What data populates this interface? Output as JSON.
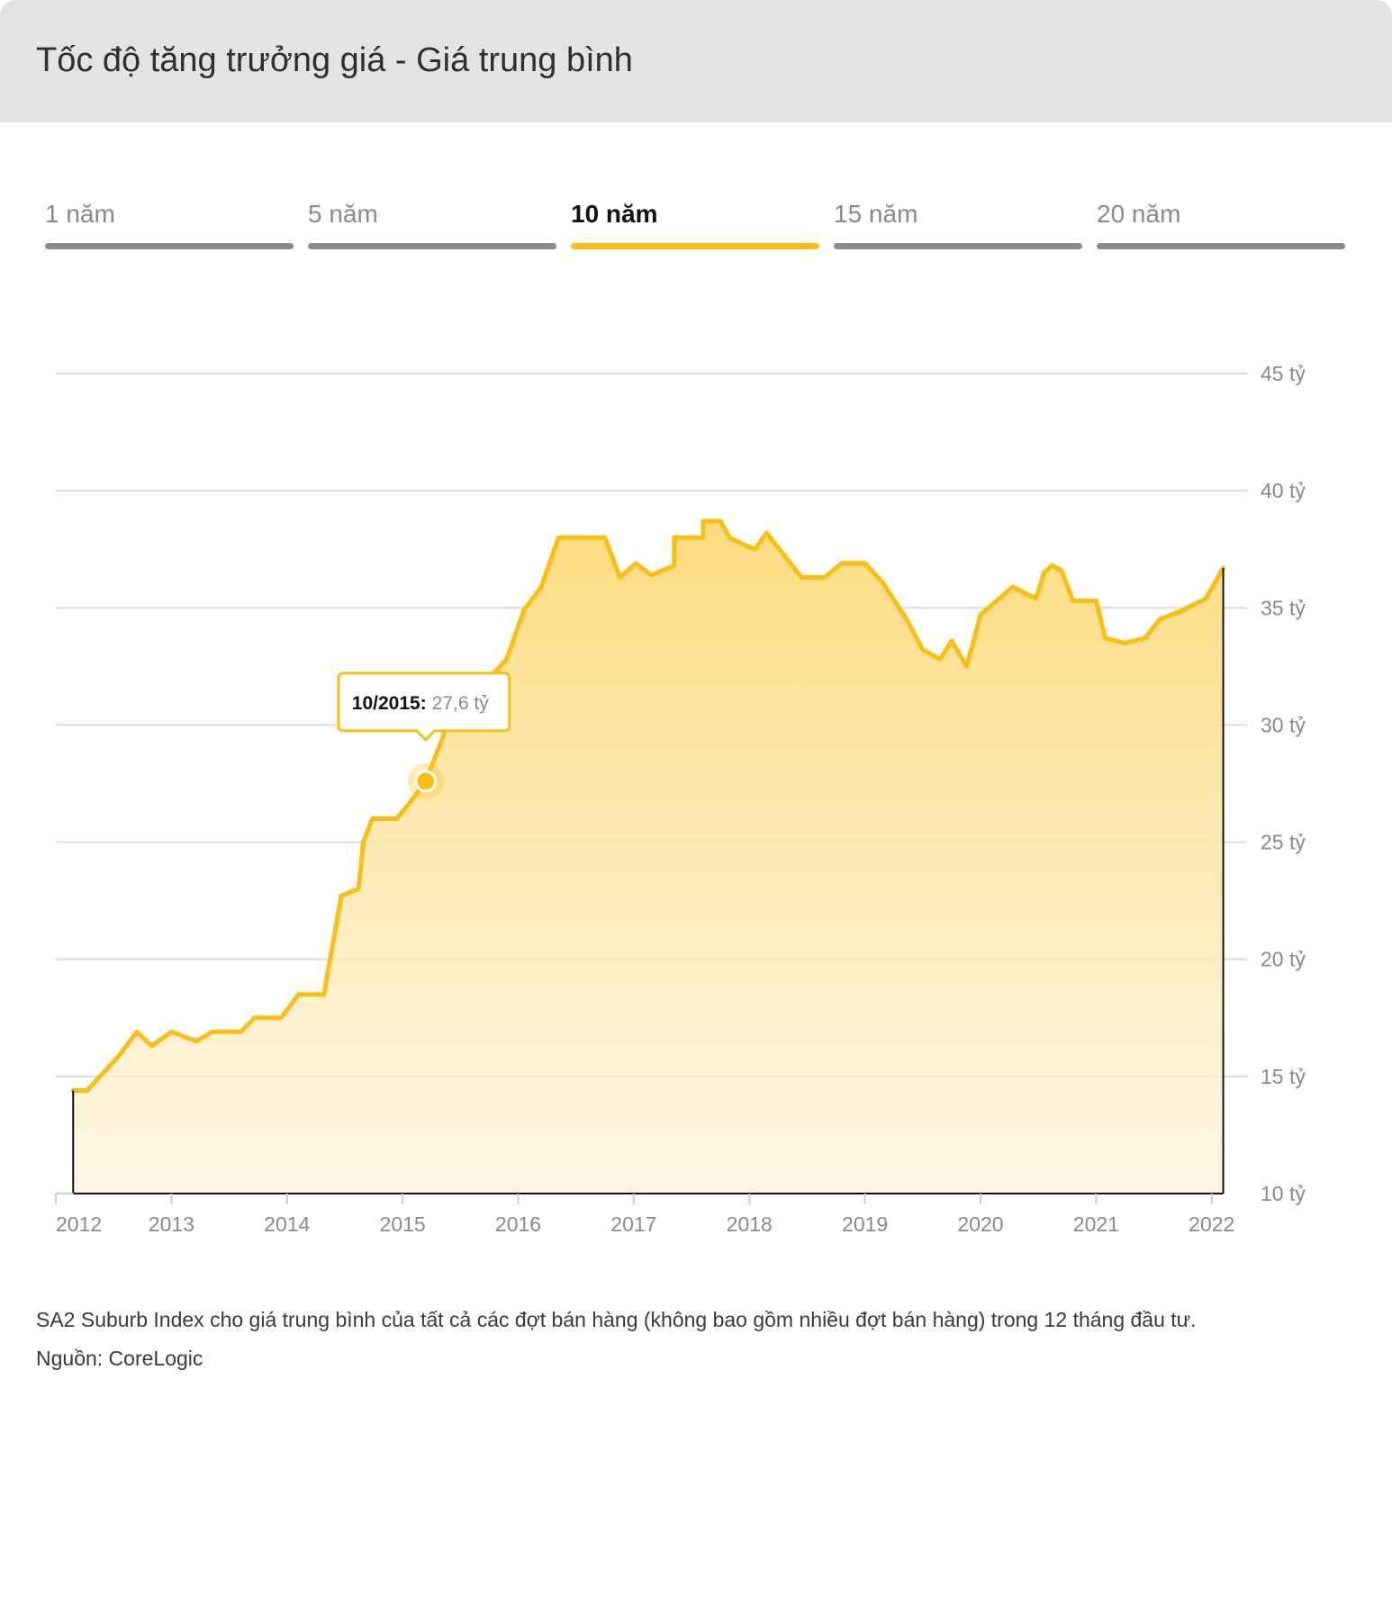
{
  "header": {
    "title": "Tốc độ tăng trưởng giá - Giá trung bình"
  },
  "tabs": [
    {
      "label": "1 năm",
      "active": false
    },
    {
      "label": "5 năm",
      "active": false
    },
    {
      "label": "10 năm",
      "active": true
    },
    {
      "label": "15 năm",
      "active": false
    },
    {
      "label": "20 năm",
      "active": false
    }
  ],
  "colors": {
    "accent": "#fbbf13",
    "inactive_tab": "#8c8c8c",
    "grid": "#dddddd",
    "axis_text": "#8a8a8a"
  },
  "chart_data": {
    "type": "area",
    "title": "",
    "xlabel": "",
    "ylabel": "",
    "ylim": [
      10,
      45
    ],
    "yticks": [
      10,
      15,
      20,
      25,
      30,
      35,
      40,
      45
    ],
    "ytick_labels": [
      "10 tỷ",
      "15 tỷ",
      "20 tỷ",
      "25 tỷ",
      "30 tỷ",
      "35 tỷ",
      "40 tỷ",
      "45 tỷ"
    ],
    "xlim": [
      2012.0,
      2022.15
    ],
    "xticks": [
      2012,
      2013,
      2014,
      2015,
      2016,
      2017,
      2018,
      2019,
      2020,
      2021,
      2022
    ],
    "xtick_labels": [
      "2012",
      "2013",
      "2014",
      "2015",
      "2016",
      "2017",
      "2018",
      "2019",
      "2020",
      "2021",
      "2022"
    ],
    "grid": true,
    "series": [
      {
        "x": [
          2012.15,
          2012.27,
          2012.42,
          2012.55,
          2012.7,
          2012.83,
          2013.0,
          2013.22,
          2013.35,
          2013.6,
          2013.72,
          2013.95,
          2014.1,
          2014.25,
          2014.32,
          2014.47,
          2014.62,
          2014.66,
          2014.74,
          2014.95,
          2015.05,
          2015.2,
          2015.35,
          2015.45,
          2015.55,
          2015.62,
          2015.75,
          2015.9,
          2016.05,
          2016.2,
          2016.35,
          2016.5,
          2016.65,
          2016.75,
          2016.88,
          2017.02,
          2017.15,
          2017.35,
          2017.35,
          2017.6,
          2017.6,
          2017.75,
          2017.83,
          2017.95,
          2018.05,
          2018.15,
          2018.45,
          2018.65,
          2018.8,
          2019.0,
          2019.15,
          2019.35,
          2019.5,
          2019.65,
          2019.75,
          2019.88,
          2020.0,
          2020.28,
          2020.48,
          2020.55,
          2020.62,
          2020.7,
          2020.8,
          2021.0,
          2021.08,
          2021.25,
          2021.42,
          2021.55,
          2021.75,
          2021.95,
          2022.1
        ],
        "y": [
          14.4,
          14.4,
          15.2,
          15.9,
          16.9,
          16.3,
          16.9,
          16.5,
          16.9,
          16.9,
          17.5,
          17.5,
          18.5,
          18.5,
          18.5,
          22.7,
          23.0,
          25.0,
          26.0,
          26.0,
          26.6,
          27.6,
          29.5,
          31.4,
          31.3,
          31.9,
          32.0,
          32.8,
          34.9,
          35.9,
          38.0,
          38.0,
          38.0,
          38.0,
          36.3,
          36.9,
          36.4,
          36.8,
          38.0,
          38.0,
          38.7,
          38.7,
          38.0,
          37.7,
          37.5,
          38.2,
          36.3,
          36.3,
          36.9,
          36.9,
          36.1,
          34.6,
          33.2,
          32.8,
          33.6,
          32.5,
          34.7,
          35.9,
          35.4,
          36.5,
          36.8,
          36.6,
          35.3,
          35.3,
          33.7,
          33.5,
          33.7,
          34.5,
          34.9,
          35.4,
          36.7
        ]
      }
    ],
    "highlight": {
      "x": 2015.2,
      "y": 27.6,
      "date_label": "10/2015:",
      "value_label": "27,6 tỷ"
    }
  },
  "footnotes": {
    "description": "SA2 Suburb Index cho giá trung bình của tất cả các đợt bán hàng (không bao gồm nhiều đợt bán hàng) trong 12 tháng đầu tư.",
    "source": "Nguồn: CoreLogic"
  }
}
